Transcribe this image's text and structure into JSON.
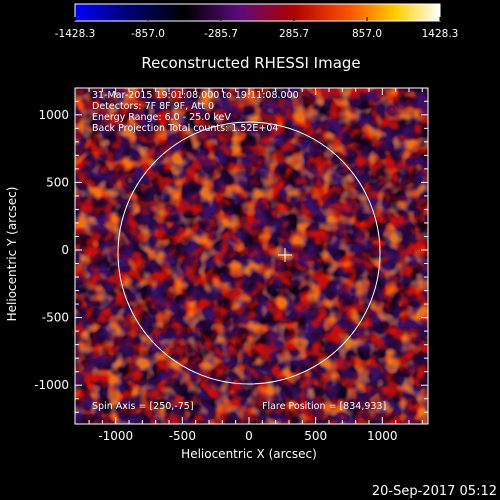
{
  "colorbar": {
    "ticks": [
      "-1428.3",
      "-857.0",
      "-285.7",
      "285.7",
      "857.0",
      "1428.3"
    ],
    "colors": [
      "#0000ff",
      "#000070",
      "#000000",
      "#5a0b7a",
      "#b00000",
      "#ff5000",
      "#ffd000",
      "#ffffff"
    ]
  },
  "title": "Reconstructed RHESSI Image",
  "info": {
    "line1": "31-Mar-2015 19:01:08.000 to 19:11:08.000",
    "line2": "Detectors: 7F 8F 9F, Att 0",
    "line3": "Energy Range: 6.0 - 25.0 keV",
    "line4": "Back Projection   Total counts: 1.52E+04"
  },
  "spin_axis": "Spin Axis = [250,-75]",
  "flare_position": "Flare Position = [834,933]",
  "axes": {
    "xlabel": "Heliocentric X (arcsec)",
    "ylabel": "Heliocentric Y (arcsec)",
    "xticks": [
      "-1000",
      "-500",
      "0",
      "500",
      "1000"
    ],
    "yticks": [
      "-1000",
      "-500",
      "0",
      "500",
      "1000"
    ]
  },
  "footer_date": "20-Sep-2017 05:12"
}
